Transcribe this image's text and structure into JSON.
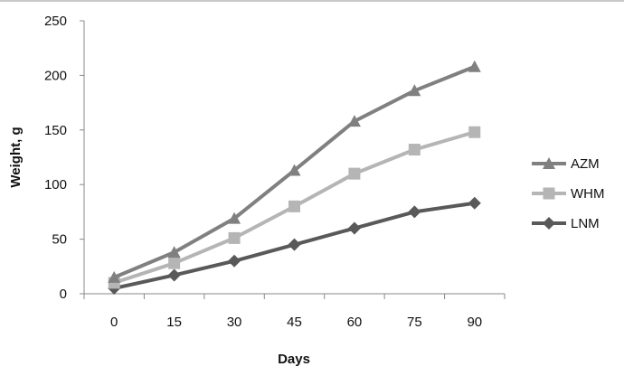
{
  "chart_data": {
    "type": "line",
    "title": "",
    "xlabel": "Days",
    "ylabel": "Weight, g",
    "x": [
      0,
      15,
      30,
      45,
      60,
      75,
      90
    ],
    "ylim": [
      0,
      250
    ],
    "yticks": [
      0,
      50,
      100,
      150,
      200,
      250
    ],
    "grid": false,
    "legend_position": "right",
    "series": [
      {
        "name": "AZM",
        "marker": "triangle",
        "color": "#808080",
        "values": [
          15,
          38,
          69,
          113,
          158,
          186,
          208
        ]
      },
      {
        "name": "WHM",
        "marker": "square",
        "color": "#b5b5b5",
        "values": [
          10,
          28,
          51,
          80,
          110,
          132,
          148
        ]
      },
      {
        "name": "LNM",
        "marker": "diamond",
        "color": "#595959",
        "values": [
          5,
          17,
          30,
          45,
          60,
          75,
          83
        ]
      }
    ]
  }
}
